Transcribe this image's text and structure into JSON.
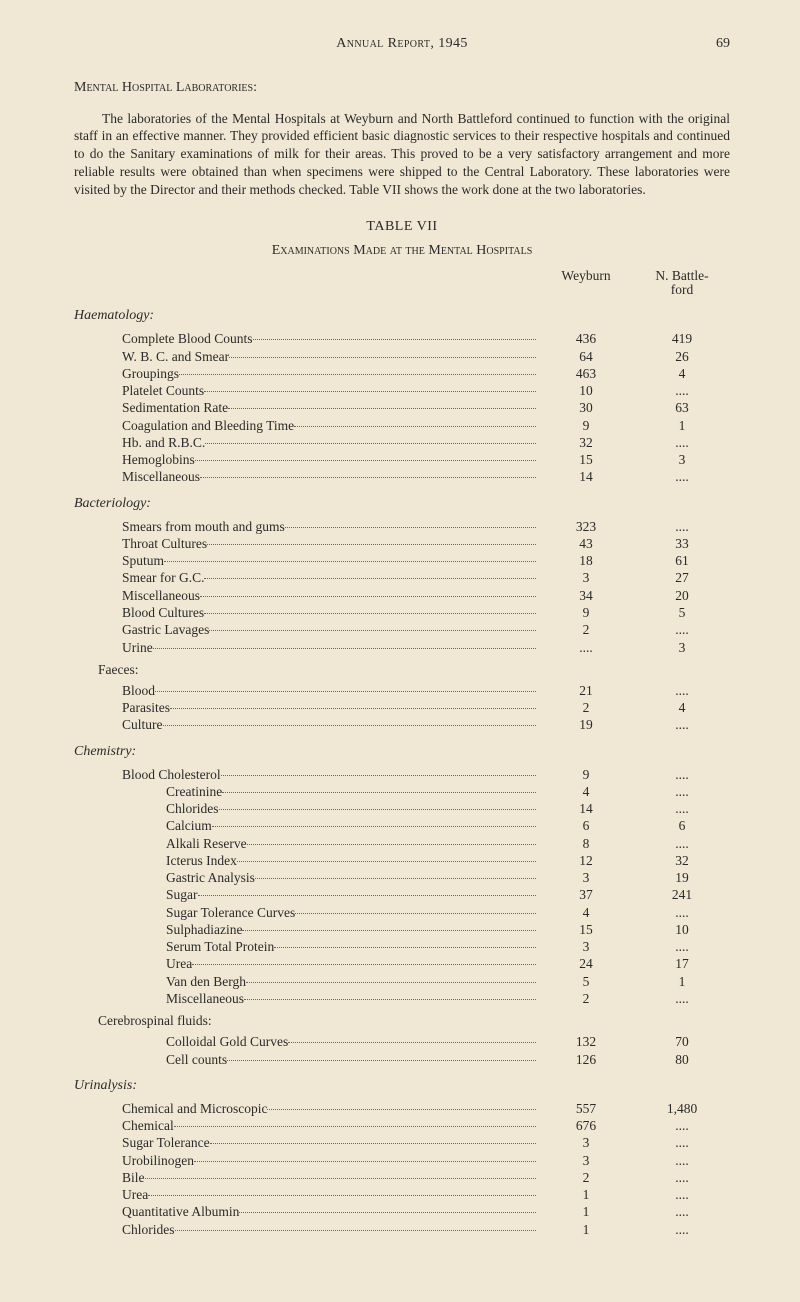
{
  "page": {
    "runningTitle": "Annual Report, 1945",
    "pageNumber": "69"
  },
  "sectionTitle": "Mental Hospital Laboratories:",
  "paragraph": "The laboratories of the Mental Hospitals at Weyburn and North Battleford continued to function with the original staff in an effective manner. They provided efficient basic diagnostic services to their respective hospitals and continued to do the Sanitary examinations of milk for their areas. This proved to be a very satisfactory arrangement and more reliable results were obtained than when specimens were shipped to the Central Laboratory. These laboratories were visited by the Director and their methods checked. Table VII shows the work done at the two laboratories.",
  "tableLabel": "TABLE VII",
  "tableCaption": "Examinations Made at the Mental Hospitals",
  "columnHeaders": {
    "c1": "Weyburn",
    "c2": "N. Battle-\nford"
  },
  "groups": [
    {
      "heading": "Haematology:",
      "style": "italic",
      "rows": [
        {
          "label": "Complete Blood Counts",
          "v1": "436",
          "v2": "419",
          "indent": 1
        },
        {
          "label": "W. B. C. and Smear",
          "v1": "64",
          "v2": "26",
          "indent": 1
        },
        {
          "label": "Groupings",
          "v1": "463",
          "v2": "4",
          "indent": 1
        },
        {
          "label": "Platelet Counts",
          "v1": "10",
          "v2": "....",
          "indent": 1
        },
        {
          "label": "Sedimentation Rate",
          "v1": "30",
          "v2": "63",
          "indent": 1
        },
        {
          "label": "Coagulation and Bleeding Time",
          "v1": "9",
          "v2": "1",
          "indent": 1
        },
        {
          "label": "Hb. and R.B.C.",
          "v1": "32",
          "v2": "....",
          "indent": 1
        },
        {
          "label": "Hemoglobins",
          "v1": "15",
          "v2": "3",
          "indent": 1
        },
        {
          "label": "Miscellaneous",
          "v1": "14",
          "v2": "....",
          "indent": 1
        }
      ]
    },
    {
      "heading": "Bacteriology:",
      "style": "italic",
      "rows": [
        {
          "label": "Smears from mouth and gums",
          "v1": "323",
          "v2": "....",
          "indent": 1
        },
        {
          "label": "Throat Cultures",
          "v1": "43",
          "v2": "33",
          "indent": 1
        },
        {
          "label": "Sputum",
          "v1": "18",
          "v2": "61",
          "indent": 1
        },
        {
          "label": "Smear for G.C.",
          "v1": "3",
          "v2": "27",
          "indent": 1
        },
        {
          "label": "Miscellaneous",
          "v1": "34",
          "v2": "20",
          "indent": 1
        },
        {
          "label": "Blood Cultures",
          "v1": "9",
          "v2": "5",
          "indent": 1
        },
        {
          "label": "Gastric Lavages",
          "v1": "2",
          "v2": "....",
          "indent": 1
        },
        {
          "label": "Urine",
          "v1": "....",
          "v2": "3",
          "indent": 1
        }
      ]
    },
    {
      "heading": "Faeces:",
      "style": "sub",
      "rows": [
        {
          "label": "Blood",
          "v1": "21",
          "v2": "....",
          "indent": 1
        },
        {
          "label": "Parasites",
          "v1": "2",
          "v2": "4",
          "indent": 1
        },
        {
          "label": "Culture",
          "v1": "19",
          "v2": "....",
          "indent": 1
        }
      ]
    },
    {
      "heading": "Chemistry:",
      "style": "italic",
      "rows": [
        {
          "label": "Blood Cholesterol",
          "v1": "9",
          "v2": "....",
          "indent": 1
        },
        {
          "label": "Creatinine",
          "v1": "4",
          "v2": "....",
          "indent": 2
        },
        {
          "label": "Chlorides",
          "v1": "14",
          "v2": "....",
          "indent": 2
        },
        {
          "label": "Calcium",
          "v1": "6",
          "v2": "6",
          "indent": 2
        },
        {
          "label": "Alkali Reserve",
          "v1": "8",
          "v2": "....",
          "indent": 2
        },
        {
          "label": "Icterus Index",
          "v1": "12",
          "v2": "32",
          "indent": 2
        },
        {
          "label": "Gastric Analysis",
          "v1": "3",
          "v2": "19",
          "indent": 2
        },
        {
          "label": "Sugar",
          "v1": "37",
          "v2": "241",
          "indent": 2
        },
        {
          "label": "Sugar Tolerance Curves",
          "v1": "4",
          "v2": "....",
          "indent": 2
        },
        {
          "label": "Sulphadiazine",
          "v1": "15",
          "v2": "10",
          "indent": 2
        },
        {
          "label": "Serum Total Protein",
          "v1": "3",
          "v2": "....",
          "indent": 2
        },
        {
          "label": "Urea",
          "v1": "24",
          "v2": "17",
          "indent": 2
        },
        {
          "label": "Van den Bergh",
          "v1": "5",
          "v2": "1",
          "indent": 2
        },
        {
          "label": "Miscellaneous",
          "v1": "2",
          "v2": "....",
          "indent": 2
        }
      ]
    },
    {
      "heading": "Cerebrospinal fluids:",
      "style": "sub",
      "rows": [
        {
          "label": "Colloidal Gold Curves",
          "v1": "132",
          "v2": "70",
          "indent": 2
        },
        {
          "label": "Cell counts",
          "v1": "126",
          "v2": "80",
          "indent": 2
        }
      ]
    },
    {
      "heading": "Urinalysis:",
      "style": "italic",
      "rows": [
        {
          "label": "Chemical and Microscopic",
          "v1": "557",
          "v2": "1,480",
          "indent": 1
        },
        {
          "label": "Chemical",
          "v1": "676",
          "v2": "....",
          "indent": 1
        },
        {
          "label": "Sugar Tolerance",
          "v1": "3",
          "v2": "....",
          "indent": 1
        },
        {
          "label": "Urobilinogen",
          "v1": "3",
          "v2": "....",
          "indent": 1
        },
        {
          "label": "Bile",
          "v1": "2",
          "v2": "....",
          "indent": 1
        },
        {
          "label": "Urea",
          "v1": "1",
          "v2": "....",
          "indent": 1
        },
        {
          "label": "Quantitative Albumin",
          "v1": "1",
          "v2": "....",
          "indent": 1
        },
        {
          "label": "Chlorides",
          "v1": "1",
          "v2": "....",
          "indent": 1
        }
      ]
    }
  ],
  "style": {
    "background": "#f0e8d4",
    "text_color": "#2a2a2a",
    "font_family": "Georgia, 'Times New Roman', serif",
    "body_fontsize_pt": 10,
    "leader_color": "#6b6355"
  }
}
